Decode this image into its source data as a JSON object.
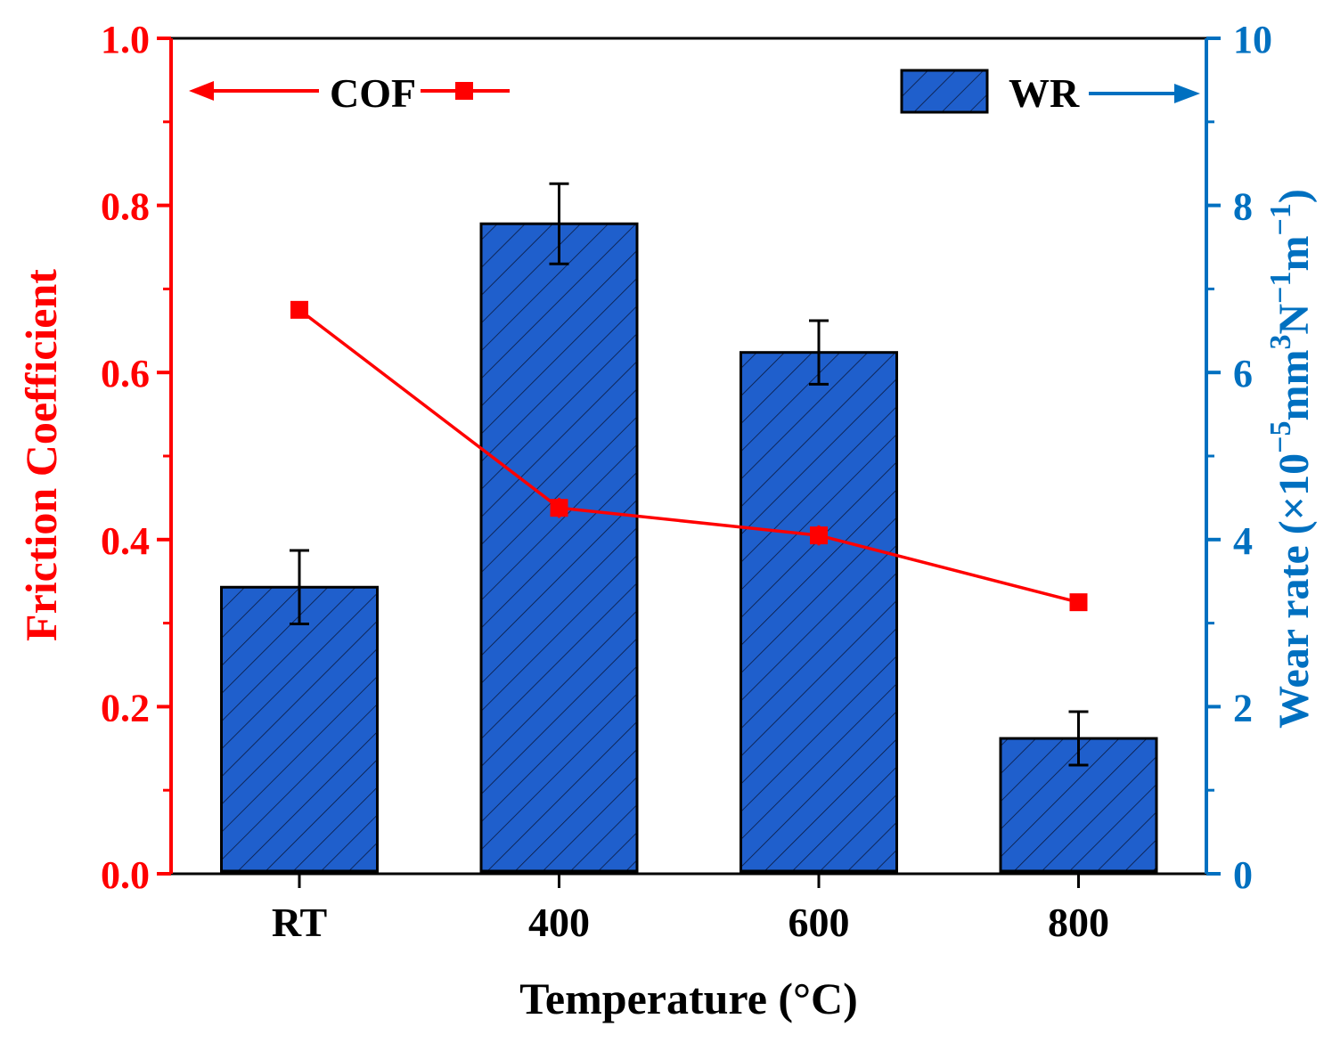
{
  "chart_data": {
    "type": "bar",
    "categories": [
      "RT",
      "400",
      "600",
      "800"
    ],
    "xlabel": "Temperature (°C)",
    "series": [
      {
        "name": "COF",
        "kind": "line",
        "axis": "left",
        "values": [
          0.675,
          0.438,
          0.405,
          0.325
        ],
        "errors": [
          0.01,
          0.012,
          0.012,
          0.008
        ]
      },
      {
        "name": "WR",
        "kind": "bar",
        "axis": "right",
        "values": [
          3.43,
          7.78,
          6.24,
          1.62
        ],
        "errors": [
          0.44,
          0.48,
          0.38,
          0.32
        ]
      }
    ],
    "left_axis": {
      "label": "Friction Coefficient",
      "ylim": [
        0.0,
        1.0
      ],
      "ticks": [
        "0.0",
        "0.2",
        "0.4",
        "0.6",
        "0.8",
        "1.0"
      ],
      "tick_values": [
        0.0,
        0.2,
        0.4,
        0.6,
        0.8,
        1.0
      ],
      "color": "#ff0000"
    },
    "right_axis": {
      "label_prefix": "Wear rate (×10",
      "label_exp1": "−5",
      "label_mid1": "mm",
      "label_exp2": "3",
      "label_mid2": "N",
      "label_exp3": "−1",
      "label_mid3": "m",
      "label_exp4": "−1",
      "label_suffix": ")",
      "ylim": [
        0,
        10
      ],
      "ticks": [
        "0",
        "2",
        "4",
        "6",
        "8",
        "10"
      ],
      "tick_values": [
        0,
        2,
        4,
        6,
        8,
        10
      ],
      "color": "#0070c0"
    },
    "legend": {
      "cof_label": "COF",
      "wr_label": "WR",
      "cof_placement": "top-left",
      "wr_placement": "top-right"
    },
    "colors": {
      "bar_fill": "#1f5fcc",
      "line": "#ff0000",
      "axis": "#000000"
    }
  }
}
